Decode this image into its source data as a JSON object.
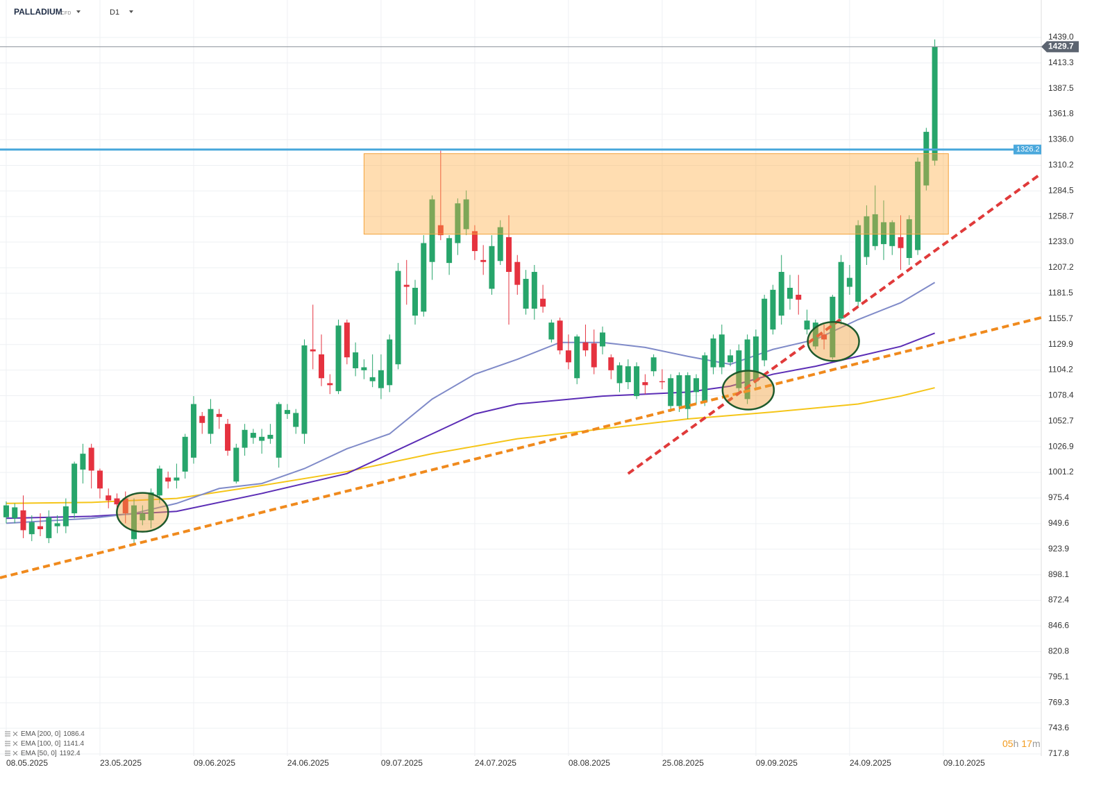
{
  "header": {
    "symbol": "PALLADIUM",
    "kind": "CFD",
    "interval": "D1"
  },
  "timer": [
    "05",
    "h",
    "17",
    "m"
  ],
  "chart_data": {
    "type": "candlestick",
    "xlim": [
      -0.73,
      121.5
    ],
    "ylim": [
      715.7,
      1476.7
    ],
    "xticks": [
      {
        "value": 0,
        "label": "08.05.2025"
      },
      {
        "value": 11,
        "label": "23.05.2025"
      },
      {
        "value": 22,
        "label": "09.06.2025"
      },
      {
        "value": 33,
        "label": "24.06.2025"
      },
      {
        "value": 44,
        "label": "09.07.2025"
      },
      {
        "value": 55,
        "label": "24.07.2025"
      },
      {
        "value": 66,
        "label": "08.08.2025"
      },
      {
        "value": 77,
        "label": "25.08.2025"
      },
      {
        "value": 88,
        "label": "09.09.2025"
      },
      {
        "value": 99,
        "label": "24.09.2025"
      },
      {
        "value": 110,
        "label": "09.10.2025"
      }
    ],
    "yticks": [
      {
        "value": 1439,
        "label": "1439.0"
      },
      1413.3,
      1387.5,
      1361.8,
      {
        "value": 1336,
        "label": "1336.0"
      },
      1310.2,
      1284.5,
      1258.7,
      {
        "value": 1233,
        "label": "1233.0"
      },
      1207.2,
      1181.5,
      1155.7,
      1129.9,
      1104.2,
      1078.4,
      1052.7,
      1026.9,
      1001.2,
      975.4,
      949.6,
      923.9,
      898.1,
      872.4,
      846.6,
      820.8,
      795.1,
      769.3,
      743.6,
      717.8
    ],
    "up_color": "#27a56b",
    "down_color": "#e5323f",
    "ohlc": [
      [
        956,
        972,
        950,
        968
      ],
      [
        955,
        970,
        950,
        966
      ],
      [
        963,
        978,
        935,
        943
      ],
      [
        939,
        958,
        932,
        951
      ],
      [
        947,
        960,
        937,
        944
      ],
      [
        935,
        963,
        930,
        956
      ],
      [
        947,
        958,
        940,
        950
      ],
      [
        947,
        975,
        940,
        967
      ],
      [
        960,
        1012,
        955,
        1010
      ],
      [
        1004,
        1030,
        990,
        1020
      ],
      [
        1026,
        1030,
        985,
        1003
      ],
      [
        1003,
        1005,
        975,
        985
      ],
      [
        978,
        985,
        965,
        973
      ],
      [
        975,
        980,
        962,
        969
      ],
      [
        975,
        982,
        950,
        960
      ],
      [
        934,
        975,
        930,
        968
      ],
      [
        953,
        968,
        948,
        960
      ],
      [
        953,
        985,
        945,
        981
      ],
      [
        978,
        1008,
        970,
        1005
      ],
      [
        996,
        1002,
        985,
        992
      ],
      [
        993,
        1010,
        985,
        996
      ],
      [
        1002,
        1040,
        995,
        1037
      ],
      [
        1016,
        1078,
        1010,
        1070
      ],
      [
        1058,
        1062,
        1040,
        1051
      ],
      [
        1040,
        1075,
        1030,
        1065
      ],
      [
        1060,
        1065,
        1045,
        1057
      ],
      [
        1050,
        1055,
        1018,
        1023
      ],
      [
        992,
        1030,
        990,
        1026
      ],
      [
        1026,
        1050,
        1018,
        1044
      ],
      [
        1036,
        1045,
        1030,
        1041
      ],
      [
        1033,
        1045,
        1020,
        1037
      ],
      [
        1035,
        1050,
        1030,
        1039
      ],
      [
        1016,
        1072,
        1006,
        1070
      ],
      [
        1060,
        1070,
        1055,
        1064
      ],
      [
        1047,
        1065,
        1040,
        1061
      ],
      [
        1040,
        1135,
        1030,
        1129
      ],
      [
        1125,
        1170,
        1105,
        1123
      ],
      [
        1120,
        1140,
        1088,
        1096
      ],
      [
        1091,
        1100,
        1080,
        1089
      ],
      [
        1083,
        1155,
        1080,
        1149
      ],
      [
        1152,
        1155,
        1110,
        1117
      ],
      [
        1106,
        1132,
        1098,
        1122
      ],
      [
        1104,
        1115,
        1095,
        1107
      ],
      [
        1093,
        1120,
        1087,
        1097
      ],
      [
        1086,
        1120,
        1075,
        1104
      ],
      [
        1089,
        1140,
        1082,
        1135
      ],
      [
        1110,
        1212,
        1105,
        1204
      ],
      [
        1190,
        1215,
        1170,
        1188
      ],
      [
        1159,
        1195,
        1150,
        1187
      ],
      [
        1163,
        1240,
        1158,
        1232
      ],
      [
        1213,
        1280,
        1195,
        1276
      ],
      [
        1250,
        1325,
        1235,
        1240
      ],
      [
        1212,
        1240,
        1200,
        1237
      ],
      [
        1232,
        1277,
        1220,
        1272
      ],
      [
        1246,
        1285,
        1240,
        1276
      ],
      [
        1244,
        1250,
        1215,
        1224
      ],
      [
        1215,
        1230,
        1200,
        1213
      ],
      [
        1186,
        1240,
        1180,
        1229
      ],
      [
        1214,
        1255,
        1210,
        1248
      ],
      [
        1238,
        1260,
        1150,
        1203
      ],
      [
        1213,
        1220,
        1180,
        1190
      ],
      [
        1166,
        1205,
        1160,
        1196
      ],
      [
        1166,
        1210,
        1155,
        1203
      ],
      [
        1176,
        1190,
        1162,
        1168
      ],
      [
        1135,
        1155,
        1132,
        1152
      ],
      [
        1154,
        1157,
        1120,
        1124
      ],
      [
        1124,
        1140,
        1105,
        1112
      ],
      [
        1096,
        1140,
        1090,
        1138
      ],
      [
        1132,
        1150,
        1118,
        1124
      ],
      [
        1131,
        1145,
        1100,
        1107
      ],
      [
        1128,
        1148,
        1120,
        1142
      ],
      [
        1117,
        1120,
        1095,
        1104
      ],
      [
        1091,
        1112,
        1082,
        1109
      ],
      [
        1092,
        1115,
        1085,
        1108
      ],
      [
        1078,
        1112,
        1075,
        1108
      ],
      [
        1092,
        1100,
        1080,
        1089
      ],
      [
        1103,
        1120,
        1098,
        1117
      ],
      [
        1093,
        1105,
        1085,
        1092
      ],
      [
        1068,
        1100,
        1062,
        1096
      ],
      [
        1068,
        1102,
        1062,
        1099
      ],
      [
        1065,
        1102,
        1055,
        1099
      ],
      [
        1082,
        1100,
        1070,
        1096
      ],
      [
        1072,
        1122,
        1068,
        1119
      ],
      [
        1107,
        1140,
        1100,
        1136
      ],
      [
        1107,
        1150,
        1100,
        1140
      ],
      [
        1112,
        1125,
        1108,
        1119
      ],
      [
        1086,
        1130,
        1080,
        1124
      ],
      [
        1075,
        1140,
        1070,
        1135
      ],
      [
        1093,
        1145,
        1085,
        1138
      ],
      [
        1114,
        1180,
        1108,
        1176
      ],
      [
        1145,
        1190,
        1140,
        1185
      ],
      [
        1159,
        1220,
        1150,
        1203
      ],
      [
        1176,
        1200,
        1165,
        1187
      ],
      [
        1180,
        1200,
        1160,
        1175
      ],
      [
        1145,
        1165,
        1140,
        1154
      ],
      [
        1128,
        1155,
        1125,
        1152
      ],
      [
        1140,
        1150,
        1125,
        1135
      ],
      [
        1117,
        1180,
        1115,
        1178
      ],
      [
        1156,
        1220,
        1150,
        1213
      ],
      [
        1188,
        1210,
        1180,
        1197
      ],
      [
        1173,
        1255,
        1168,
        1250
      ],
      [
        1218,
        1270,
        1210,
        1259
      ],
      [
        1229,
        1290,
        1225,
        1261
      ],
      [
        1231,
        1275,
        1215,
        1253
      ],
      [
        1229,
        1255,
        1220,
        1253
      ],
      [
        1238,
        1260,
        1205,
        1227
      ],
      [
        1217,
        1260,
        1210,
        1256
      ],
      [
        1225,
        1318,
        1220,
        1314
      ],
      [
        1290,
        1348,
        1285,
        1344
      ],
      [
        1315,
        1437,
        1310,
        1430
      ]
    ],
    "last_price": 1429.7,
    "last_price_label": "1429.7",
    "level": {
      "value": 1326.2,
      "label": "1326.2",
      "color": "#4aa8dc"
    },
    "zone": {
      "x": [
        42,
        110.6
      ],
      "y": [
        1241,
        1322
      ]
    },
    "trendlines": [
      {
        "color": "#f08a1d",
        "x": [
          -0.73,
          121.5
        ],
        "y": [
          895.1,
          1157
        ]
      },
      {
        "color": "#e03a3a",
        "x": [
          73,
          121.3
        ],
        "y": [
          999.9,
          1300.8
        ]
      }
    ],
    "circles": [
      {
        "x": 16,
        "y": 961
      },
      {
        "x": 87.1,
        "y": 1084
      },
      {
        "x": 97.1,
        "y": 1133
      }
    ],
    "indicators": [
      {
        "name": "EMA [200, 0]",
        "last": 1086.4,
        "color": "#f5c518",
        "x": [
          0,
          10,
          20,
          30,
          40,
          50,
          60,
          70,
          80,
          90,
          100,
          105,
          109
        ],
        "values": [
          970,
          971,
          975,
          988,
          1002,
          1020,
          1035,
          1045,
          1055,
          1062,
          1070,
          1078,
          1086.4
        ]
      },
      {
        "name": "EMA [100, 0]",
        "last": 1141.4,
        "color": "#5b2db5",
        "x": [
          0,
          10,
          20,
          30,
          40,
          50,
          55,
          60,
          70,
          80,
          85,
          90,
          95,
          100,
          105,
          109
        ],
        "values": [
          955,
          957,
          962,
          980,
          1000,
          1040,
          1060,
          1070,
          1078,
          1082,
          1088,
          1100,
          1108,
          1118,
          1128,
          1141.4
        ]
      },
      {
        "name": "EMA [50, 0]",
        "last": 1192.4,
        "color": "#7f8ac8",
        "x": [
          0,
          10,
          15,
          20,
          25,
          30,
          35,
          40,
          45,
          50,
          55,
          60,
          65,
          70,
          75,
          80,
          85,
          90,
          95,
          100,
          105,
          109
        ],
        "values": [
          950,
          955,
          960,
          970,
          985,
          990,
          1005,
          1025,
          1040,
          1075,
          1100,
          1115,
          1132,
          1132,
          1127,
          1118,
          1110,
          1125,
          1135,
          1155,
          1172,
          1192.4
        ]
      }
    ]
  }
}
